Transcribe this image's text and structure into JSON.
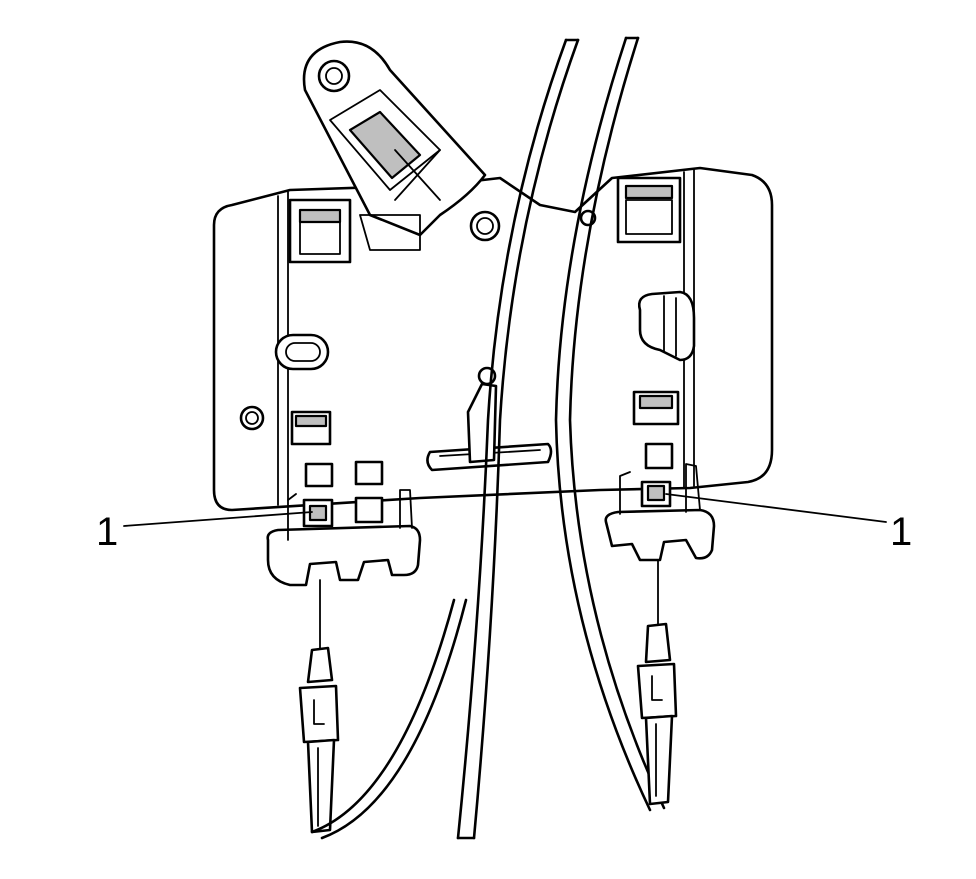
{
  "callouts": {
    "left": {
      "label": "1"
    },
    "right": {
      "label": "1"
    }
  },
  "colors": {
    "line": "#000000",
    "background": "#ffffff",
    "shade": "#bfbfbf"
  }
}
